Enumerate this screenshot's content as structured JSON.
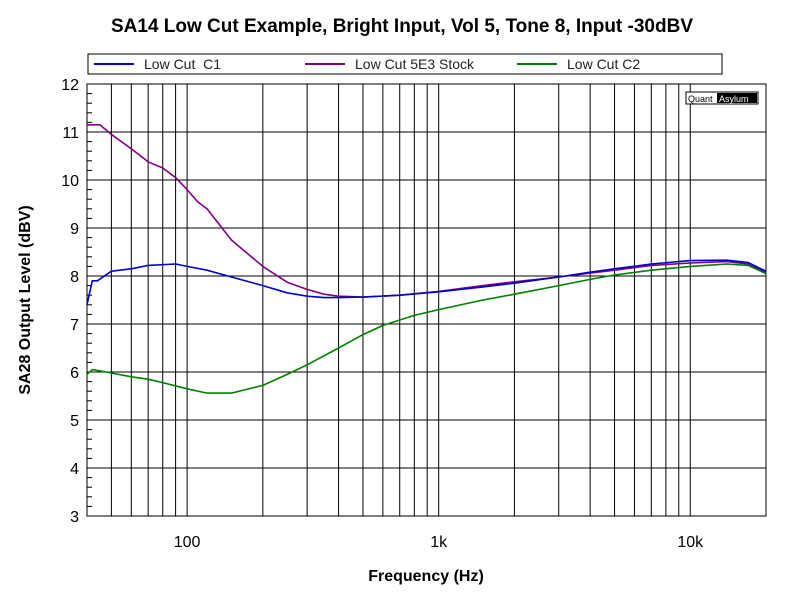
{
  "chart_data": {
    "type": "line",
    "title": "SA14 Low Cut Example, Bright Input, Vol 5, Tone 8, Input -30dBV",
    "xlabel": "Frequency (Hz)",
    "ylabel": "SA28 Output Level (dBV)",
    "x_scale": "log",
    "xlim": [
      40,
      20000
    ],
    "ylim": [
      3,
      12
    ],
    "x_tick_labels": [
      {
        "value": 100,
        "label": "100"
      },
      {
        "value": 1000,
        "label": "1k"
      },
      {
        "value": 10000,
        "label": "10k"
      }
    ],
    "y_ticks": [
      3,
      4,
      5,
      6,
      7,
      8,
      9,
      10,
      11,
      12
    ],
    "grid": true,
    "legend_position": "top",
    "watermark": {
      "part1": "Quant",
      "part2": "Asylum"
    },
    "series": [
      {
        "name": "Low Cut  C1",
        "color": "#0000cc",
        "x": [
          40,
          42,
          44,
          50,
          60,
          70,
          90,
          100,
          120,
          150,
          200,
          250,
          300,
          350,
          400,
          500,
          700,
          1000,
          1500,
          2000,
          3000,
          4000,
          5000,
          7000,
          10000,
          14000,
          17000,
          20000
        ],
        "y": [
          7.4,
          7.9,
          7.9,
          8.1,
          8.15,
          8.22,
          8.25,
          8.2,
          8.12,
          7.98,
          7.8,
          7.65,
          7.58,
          7.55,
          7.55,
          7.56,
          7.6,
          7.67,
          7.77,
          7.85,
          7.98,
          8.08,
          8.15,
          8.25,
          8.32,
          8.33,
          8.28,
          8.1
        ]
      },
      {
        "name": "Low Cut 5E3 Stock",
        "color": "#800080",
        "x": [
          40,
          45,
          50,
          60,
          70,
          80,
          90,
          100,
          110,
          120,
          150,
          200,
          250,
          300,
          350,
          400,
          500,
          700,
          1000,
          1500,
          2000,
          3000,
          4000,
          5000,
          7000,
          10000,
          14000,
          17000,
          20000
        ],
        "y": [
          11.15,
          11.15,
          10.95,
          10.65,
          10.38,
          10.25,
          10.05,
          9.8,
          9.55,
          9.4,
          8.75,
          8.2,
          7.87,
          7.72,
          7.62,
          7.58,
          7.56,
          7.6,
          7.68,
          7.8,
          7.88,
          7.98,
          8.06,
          8.12,
          8.22,
          8.27,
          8.3,
          8.25,
          8.08
        ]
      },
      {
        "name": "Low Cut C2",
        "color": "#008000",
        "x": [
          40,
          42,
          50,
          60,
          70,
          80,
          100,
          120,
          150,
          200,
          250,
          300,
          400,
          500,
          600,
          800,
          1000,
          1500,
          2000,
          3000,
          4000,
          5000,
          7000,
          10000,
          14000,
          17000,
          20000
        ],
        "y": [
          5.95,
          6.05,
          5.98,
          5.9,
          5.85,
          5.78,
          5.65,
          5.56,
          5.56,
          5.72,
          5.95,
          6.15,
          6.5,
          6.78,
          6.97,
          7.18,
          7.3,
          7.5,
          7.62,
          7.8,
          7.93,
          8.02,
          8.12,
          8.2,
          8.25,
          8.22,
          8.05
        ]
      }
    ]
  }
}
